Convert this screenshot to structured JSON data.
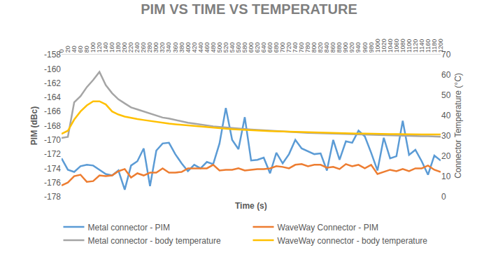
{
  "chart_data": {
    "type": "line",
    "title": "PIM VS TIME VS TEMPERATURE",
    "x_label": "Time (s)",
    "y_label": "PIM (dBc)",
    "y2_label": "Connector Temperature (°C)",
    "x": [
      0,
      20,
      40,
      60,
      80,
      100,
      120,
      140,
      160,
      180,
      200,
      220,
      240,
      260,
      280,
      300,
      320,
      340,
      360,
      380,
      400,
      420,
      440,
      460,
      480,
      500,
      520,
      540,
      560,
      580,
      600,
      620,
      640,
      660,
      680,
      700,
      720,
      740,
      760,
      780,
      800,
      820,
      840,
      860,
      880,
      900,
      920,
      940,
      960,
      980,
      1000,
      1020,
      1040,
      1060,
      1080,
      1100,
      1120,
      1140,
      1160,
      1180,
      1200
    ],
    "xlim": [
      0,
      1200
    ],
    "xticks": [
      0,
      20,
      40,
      60,
      80,
      100,
      120,
      140,
      160,
      180,
      200,
      220,
      240,
      260,
      280,
      300,
      320,
      340,
      360,
      380,
      400,
      420,
      440,
      460,
      480,
      500,
      520,
      540,
      560,
      580,
      600,
      620,
      640,
      660,
      680,
      700,
      720,
      740,
      760,
      780,
      800,
      820,
      840,
      860,
      880,
      900,
      920,
      940,
      960,
      980,
      1000,
      1020,
      1040,
      1060,
      1080,
      1100,
      1120,
      1140,
      1160,
      1180,
      1200
    ],
    "ylim": [
      -178,
      -158
    ],
    "yticks": [
      -178,
      -176,
      -174,
      -172,
      -170,
      -168,
      -166,
      -164,
      -162,
      -160,
      -158
    ],
    "y2lim": [
      0,
      70
    ],
    "y2ticks": [
      0,
      10,
      20,
      30,
      40,
      50,
      60,
      70
    ],
    "grid": false,
    "legend": "bottom",
    "series": [
      {
        "name": "Metal connector - PIM",
        "color": "#5B9BD5",
        "values": [
          -172.6,
          -174.2,
          -174.5,
          -173.7,
          -173.5,
          -173.6,
          -174.2,
          -174.8,
          -175.0,
          -174.3,
          -177.0,
          -173.6,
          -173.0,
          -171.2,
          -176.5,
          -171.5,
          -170.5,
          -170.4,
          -172.0,
          -173.3,
          -174.4,
          -173.5,
          -174.0,
          -173.1,
          -173.4,
          -170.5,
          -165.5,
          -170.0,
          -171.3,
          -166.8,
          -172.9,
          -172.8,
          -172.5,
          -174.7,
          -171.8,
          -173.3,
          -172.0,
          -170.0,
          -171.2,
          -171.6,
          -172.0,
          -171.9,
          -174.3,
          -170.0,
          -172.8,
          -170.2,
          -170.4,
          -168.7,
          -169.5,
          -171.8,
          -174.3,
          -169.7,
          -172.6,
          -172.3,
          -167.3,
          -172.1,
          -171.4,
          -173.0,
          -174.9,
          -172.2,
          -172.9
        ]
      },
      {
        "name": "WaveWay Connector - PIM",
        "color": "#ED7D31",
        "values": [
          -176.4,
          -176.0,
          -175.1,
          -174.9,
          -175.9,
          -175.8,
          -175.0,
          -175.1,
          -175.0,
          -174.4,
          -174.1,
          -175.3,
          -174.7,
          -175.0,
          -174.6,
          -174.6,
          -174.0,
          -174.6,
          -174.6,
          -174.5,
          -174.0,
          -174.0,
          -174.0,
          -174.0,
          -173.5,
          -174.3,
          -174.2,
          -174.2,
          -174.0,
          -174.3,
          -174.2,
          -174.1,
          -174.1,
          -174.0,
          -173.7,
          -173.8,
          -174.0,
          -173.5,
          -173.4,
          -173.7,
          -173.5,
          -173.5,
          -173.9,
          -173.8,
          -174.1,
          -173.4,
          -173.7,
          -173.5,
          -174.0,
          -173.5,
          -174.8,
          -174.5,
          -174.2,
          -174.4,
          -174.1,
          -174.4,
          -174.0,
          -174.0,
          -173.6,
          -174.2,
          -174.5
        ]
      },
      {
        "name": "Metal connector - body temperature",
        "color": "#A5A5A5",
        "axis": "y2",
        "values": [
          29,
          29.5,
          46.5,
          49.5,
          54,
          57.5,
          61.5,
          55,
          51,
          48,
          46,
          44,
          43,
          42,
          41,
          40,
          39,
          38.5,
          37.8,
          37,
          36.5,
          36,
          35.5,
          35,
          34.7,
          34.4,
          34.1,
          33.8,
          33.5,
          33.3,
          33.1,
          32.9,
          32.7,
          32.5,
          32.3,
          32.1,
          32,
          31.8,
          31.7,
          31.5,
          31.4,
          31.3,
          31.1,
          31,
          30.9,
          30.8,
          30.7,
          30.6,
          30.5,
          30.4,
          30.3,
          30.2,
          30.2,
          30.1,
          30,
          30,
          29.9,
          29.8,
          29.8,
          29.7,
          29.6
        ]
      },
      {
        "name": "WaveWay connector - body temperature",
        "color": "#FFC000",
        "axis": "y2",
        "values": [
          31,
          32.5,
          38,
          42,
          45,
          47,
          47,
          45.5,
          42,
          40.5,
          39.5,
          38.8,
          38.3,
          37.8,
          37.3,
          36.8,
          36.4,
          36,
          35.7,
          35.4,
          35.1,
          34.8,
          34.5,
          34.2,
          33.9,
          33.7,
          33.5,
          33.3,
          33.1,
          32.9,
          32.7,
          32.6,
          32.4,
          32.3,
          32.2,
          32.1,
          32,
          31.9,
          31.8,
          31.7,
          31.6,
          31.5,
          31.4,
          31.3,
          31.3,
          31.2,
          31.2,
          31.1,
          31.1,
          31,
          31,
          30.9,
          30.9,
          30.9,
          30.8,
          30.8,
          30.8,
          30.7,
          30.7,
          30.7,
          30.7
        ]
      }
    ]
  }
}
